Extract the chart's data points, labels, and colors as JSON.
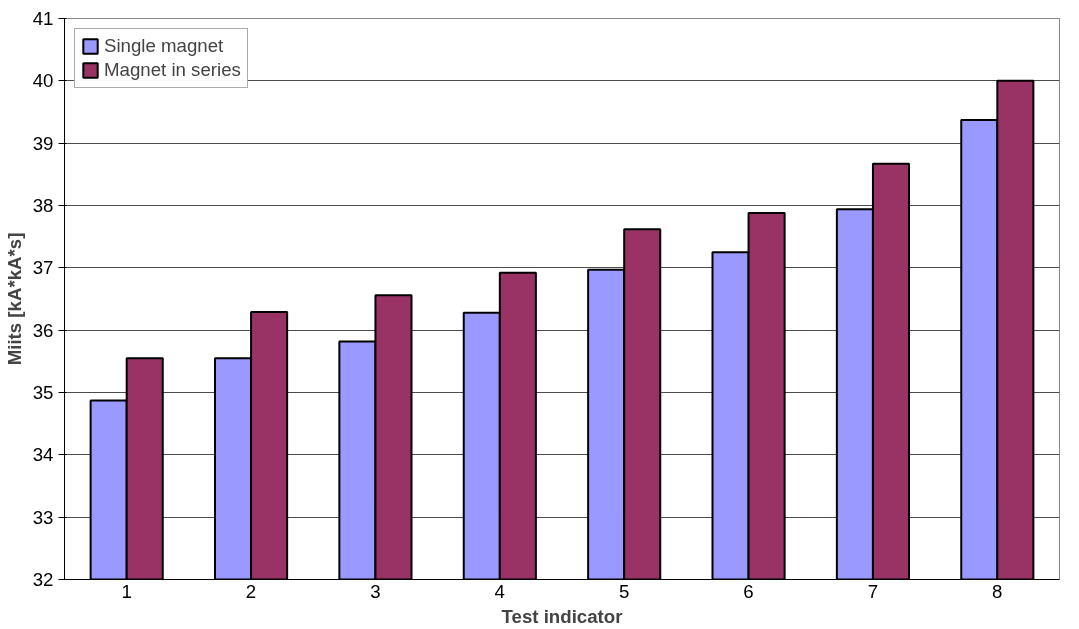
{
  "chart_data": {
    "type": "bar",
    "xlabel": "Test indicator",
    "ylabel": "Miits [kA*kA*s]",
    "categories": [
      "1",
      "2",
      "3",
      "4",
      "5",
      "6",
      "7",
      "8"
    ],
    "series": [
      {
        "name": "Single magnet",
        "color": "#9999ff",
        "values": [
          34.87,
          35.55,
          35.82,
          36.28,
          36.97,
          37.25,
          37.94,
          39.37
        ]
      },
      {
        "name": "Magnet in series",
        "color": "#993366",
        "values": [
          35.55,
          36.29,
          36.56,
          36.92,
          37.62,
          37.88,
          38.67,
          40.0
        ]
      }
    ],
    "ylim": [
      32,
      41
    ],
    "yticks": [
      32,
      33,
      34,
      35,
      36,
      37,
      38,
      39,
      40,
      41
    ],
    "grid": "y",
    "legend": "top left"
  }
}
